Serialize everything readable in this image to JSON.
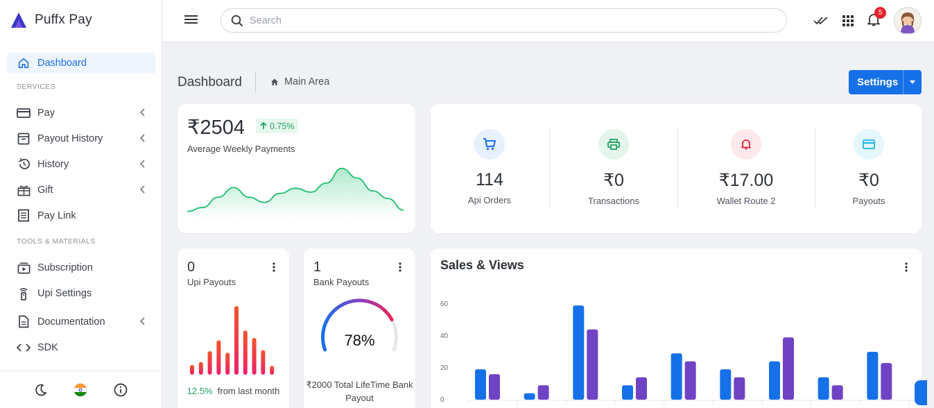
{
  "brand": {
    "name": "Puffx Pay",
    "color": "#3b36c4"
  },
  "sidebar": {
    "items": [
      {
        "label": "Dashboard",
        "icon": "home-icon",
        "active": true
      },
      {
        "section": "SERVICES"
      },
      {
        "label": "Pay",
        "icon": "card-icon",
        "chevron": true
      },
      {
        "label": "Payout History",
        "icon": "archive-icon",
        "chevron": true
      },
      {
        "label": "History",
        "icon": "history-icon",
        "chevron": true
      },
      {
        "label": "Gift",
        "icon": "gift-icon",
        "chevron": true
      },
      {
        "label": "Pay Link",
        "icon": "receipt-icon"
      },
      {
        "section": "TOOLS & MATERIALS"
      },
      {
        "label": "Subscription",
        "icon": "subscription-icon"
      },
      {
        "label": "Upi Settings",
        "icon": "remote-icon"
      },
      {
        "label": "Documentation",
        "icon": "document-icon",
        "chevron": true
      },
      {
        "label": "SDK",
        "icon": "code-icon"
      }
    ],
    "footer": [
      "moon-icon",
      "india-flag-icon",
      "info-icon"
    ]
  },
  "topbar": {
    "search_placeholder": "Search",
    "notification_count": "5"
  },
  "page": {
    "title": "Dashboard",
    "breadcrumb": "Main Area",
    "settings_label": "Settings"
  },
  "weekly": {
    "amount": "₹2504",
    "trend": "0.75%",
    "label": "Average Weekly Payments",
    "series": [
      8,
      14,
      30,
      45,
      30,
      22,
      36,
      44,
      38,
      52,
      75,
      60,
      40,
      28,
      10
    ]
  },
  "stats": [
    {
      "value": "114",
      "label": "Api Orders",
      "icon": "cart-icon",
      "color": "#1671e8",
      "bg": "#e7f0fd"
    },
    {
      "value": "₹0",
      "label": "Transactions",
      "icon": "printer-icon",
      "color": "#20a05f",
      "bg": "#e4f6ec"
    },
    {
      "value": "₹17.00",
      "label": "Wallet Route 2",
      "icon": "bell-icon",
      "color": "#e8213f",
      "bg": "#fde8ec"
    },
    {
      "value": "₹0",
      "label": "Payouts",
      "icon": "credit-card-icon",
      "color": "#1fb6e0",
      "bg": "#e3f7fc"
    }
  ],
  "upi": {
    "count": "0",
    "label": "Upi Payouts",
    "pct": "12.5%",
    "foot": "from last month",
    "bars": [
      20,
      26,
      48,
      70,
      45,
      140,
      90,
      75,
      50,
      18
    ]
  },
  "bank": {
    "count": "1",
    "label": "Bank Payouts",
    "gauge_value": 78,
    "gauge_label": "78%",
    "foot": "₹2000 Total LifeTime Bank Payout"
  },
  "chart_data": {
    "type": "bar",
    "title": "Sales & Views",
    "ylim": [
      0,
      60
    ],
    "yticks": [
      "60",
      "40",
      "20",
      "0"
    ],
    "series": [
      {
        "values": [
          19,
          4,
          59,
          9,
          29,
          19,
          24,
          14,
          30
        ],
        "color": "#1671e8"
      },
      {
        "values": [
          16,
          9,
          44,
          14,
          24,
          14,
          39,
          9,
          23
        ],
        "color": "#6f43c4"
      }
    ]
  }
}
